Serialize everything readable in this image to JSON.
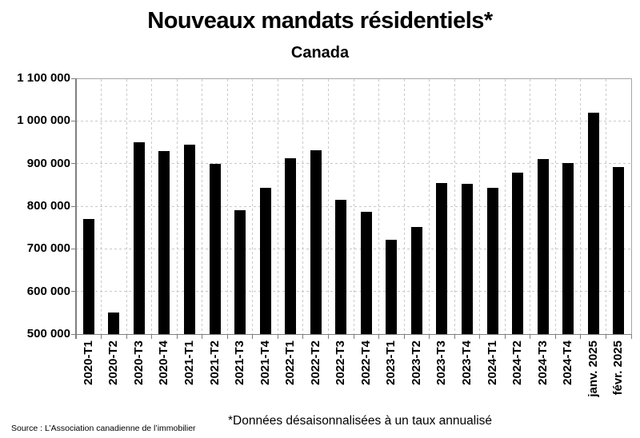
{
  "header": {
    "title": "Nouveaux mandats résidentiels*",
    "subtitle": "Canada"
  },
  "footer": {
    "source": "Source : L’Association canadienne de l’immobilier",
    "note": "*Données désaisonnalisées à un taux annualisé"
  },
  "colors": {
    "bar": "#000000",
    "gridline": "#c9c9c9",
    "axis": "#7f7f7f",
    "plot_border": "#a6a6a6",
    "text": "#000000"
  },
  "chart_data": {
    "type": "bar",
    "title": "Nouveaux mandats résidentiels*",
    "subtitle": "Canada",
    "xlabel": "",
    "ylabel": "",
    "categories": [
      "2020-T1",
      "2020-T2",
      "2020-T3",
      "2020-T4",
      "2021-T1",
      "2021-T2",
      "2021-T3",
      "2021-T4",
      "2022-T1",
      "2022-T2",
      "2022-T3",
      "2022-T4",
      "2023-T1",
      "2023-T2",
      "2023-T3",
      "2023-T4",
      "2024-T1",
      "2024-T2",
      "2024-T3",
      "2024-T4",
      "janv. 2025",
      "févr. 2025"
    ],
    "values": [
      770000,
      550000,
      950000,
      930000,
      945000,
      900000,
      791000,
      843000,
      913000,
      932000,
      815000,
      786000,
      722000,
      751000,
      855000,
      852000,
      843000,
      878000,
      911000,
      901000,
      1020000,
      891000
    ],
    "ylim": [
      500000,
      1100000
    ],
    "ytick_interval": 100000,
    "ytick_labels_top_to_bottom": [
      "1 100 000",
      "1 000 000",
      "900 000",
      "800 000",
      "700 000",
      "600 000",
      "500 000"
    ],
    "grid": "dashed horizontal and vertical gridlines",
    "legend": "none",
    "bar_color": "#000000"
  }
}
